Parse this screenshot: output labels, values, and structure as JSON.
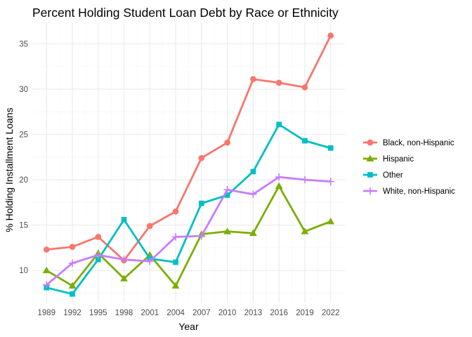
{
  "chart_data": {
    "type": "line",
    "title": "Percent Holding Student Loan Debt by Race or Ethnicity",
    "xlabel": "Year",
    "ylabel": "% Holding Installment Loans",
    "x": [
      1989,
      1992,
      1995,
      1998,
      2001,
      2004,
      2007,
      2010,
      2013,
      2016,
      2019,
      2022
    ],
    "x_tick_labels": [
      "1989",
      "1992",
      "1995",
      "1998",
      "2001",
      "2004",
      "2007",
      "2010",
      "2013",
      "2016",
      "2019",
      "2022"
    ],
    "y_ticks": [
      10,
      15,
      20,
      25,
      30,
      35
    ],
    "y_tick_labels": [
      "10",
      "15",
      "20",
      "25",
      "30",
      "35"
    ],
    "xlim": [
      1987.35,
      2023.65
    ],
    "ylim": [
      6.45,
      37.35
    ],
    "grid": true,
    "legend_position": "right",
    "series": [
      {
        "name": "Black, non-Hispanic",
        "color": "#F8766D",
        "marker": "circle",
        "values": [
          12.3,
          12.6,
          13.7,
          11.1,
          14.9,
          16.5,
          22.4,
          24.1,
          31.1,
          30.7,
          30.2,
          35.9
        ]
      },
      {
        "name": "Hispanic",
        "color": "#7CAE00",
        "marker": "triangle",
        "values": [
          10.0,
          8.3,
          11.9,
          9.1,
          11.7,
          8.3,
          14.0,
          14.3,
          14.1,
          19.3,
          14.3,
          15.4
        ]
      },
      {
        "name": "Other",
        "color": "#00BFC4",
        "marker": "square",
        "values": [
          8.1,
          7.4,
          11.2,
          15.6,
          11.3,
          10.9,
          17.4,
          18.3,
          20.9,
          26.1,
          24.3,
          23.5
        ]
      },
      {
        "name": "White, non-Hispanic",
        "color": "#C77CFF",
        "marker": "plus",
        "values": [
          8.4,
          10.8,
          11.7,
          11.2,
          11.0,
          13.7,
          13.8,
          18.9,
          18.4,
          20.3,
          20.0,
          19.8
        ]
      }
    ]
  }
}
